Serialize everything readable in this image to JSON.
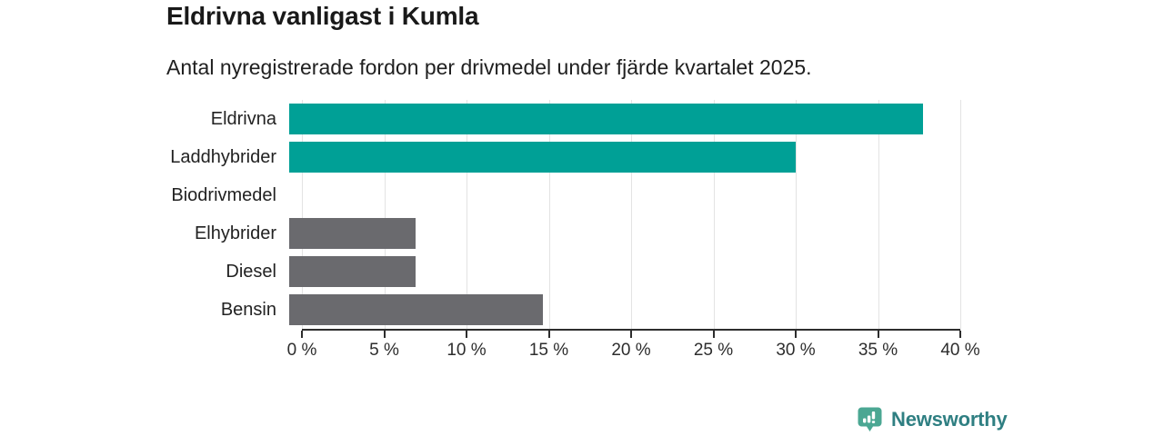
{
  "header": {
    "title": "Eldrivna vanligast i Kumla",
    "subtitle": "Antal nyregistrerade fordon per drivmedel under fjärde kvartalet 2025."
  },
  "chart_data": {
    "type": "bar",
    "orientation": "horizontal",
    "title": "Eldrivna vanligast i Kumla",
    "subtitle": "Antal nyregistrerade fordon per drivmedel under fjärde kvartalet 2025.",
    "categories": [
      "Eldrivna",
      "Laddhybrider",
      "Biodrivmedel",
      "Elhybrider",
      "Diesel",
      "Bensin"
    ],
    "values": [
      38.5,
      30.8,
      0,
      7.7,
      7.7,
      15.4
    ],
    "unit": "%",
    "xlim": [
      0,
      40
    ],
    "x_ticks": [
      "0 %",
      "5 %",
      "10 %",
      "15 %",
      "20 %",
      "25 %",
      "30 %",
      "35 %",
      "40 %"
    ],
    "bar_colors": [
      "#00A096",
      "#00A096",
      "#6A6A6E",
      "#6A6A6E",
      "#6A6A6E",
      "#6A6A6E"
    ],
    "highlight_color": "#00A096",
    "default_color": "#6A6A6E",
    "grid": true,
    "legend": false,
    "xlabel": "",
    "ylabel": ""
  },
  "branding": {
    "logo_text": "Newsworthy",
    "logo_text_color": "#2F7F82",
    "logo_mark_color": "#4BA793"
  }
}
